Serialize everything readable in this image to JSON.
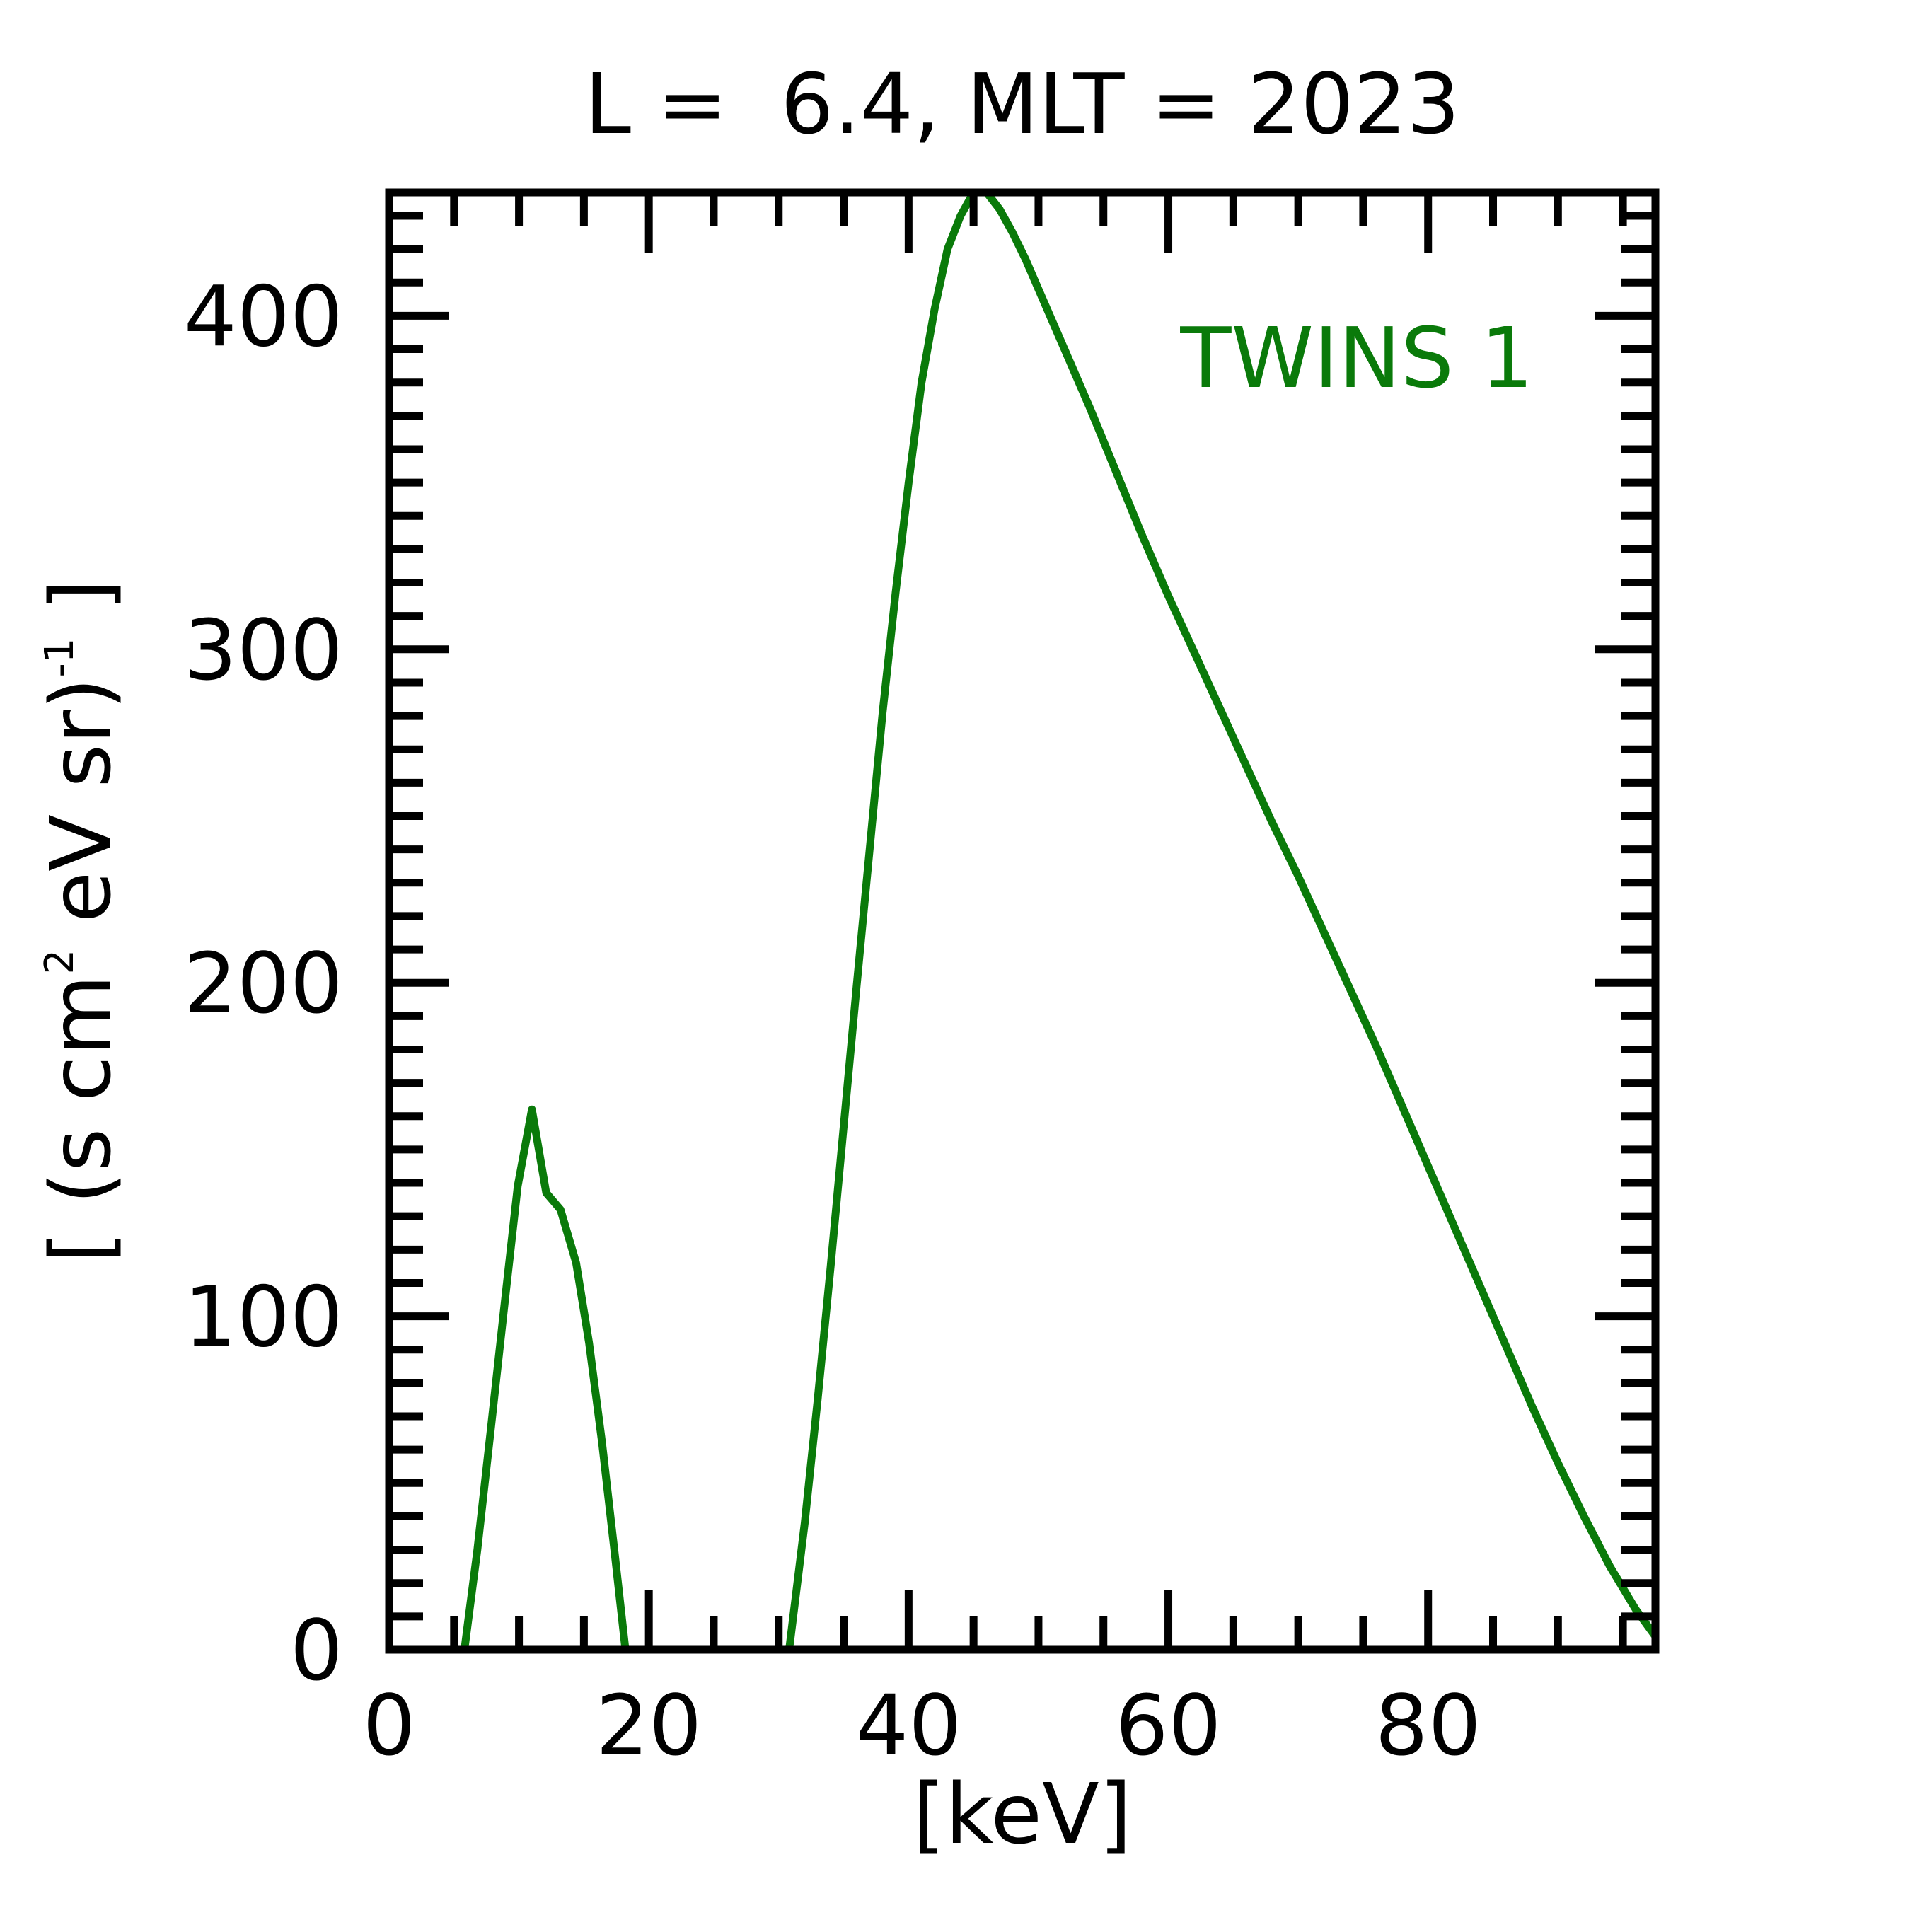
{
  "chart_data": {
    "type": "line",
    "title": "L =  6.4, MLT = 2023",
    "xlabel": "[keV]",
    "ylabel": {
      "prefix": "[ (s cm",
      "sup1": "2",
      "middle": " eV sr)",
      "sup2": "-1",
      "suffix": " ]"
    },
    "xlim": [
      0,
      97.5
    ],
    "ylim": [
      0,
      437
    ],
    "x_ticks": [
      0,
      20,
      40,
      60,
      80
    ],
    "x_tick_labels": [
      "0",
      "20",
      "40",
      "60",
      "80"
    ],
    "y_ticks": [
      0,
      100,
      200,
      300,
      400
    ],
    "y_tick_labels": [
      "0",
      "100",
      "200",
      "300",
      "400"
    ],
    "legend_position": "top-right",
    "colors": {
      "series": "#0a7a0a",
      "axes": "#000000"
    },
    "series": [
      {
        "name": "TWINS 1",
        "segments": [
          [
            [
              5.8,
              0
            ],
            [
              6.8,
              30
            ],
            [
              7.8,
              65
            ],
            [
              8.9,
              104
            ],
            [
              9.9,
              139
            ],
            [
              11.0,
              162
            ],
            [
              12.1,
              137
            ],
            [
              13.2,
              132
            ],
            [
              14.4,
              116
            ],
            [
              15.4,
              92
            ],
            [
              16.4,
              62
            ],
            [
              17.4,
              28
            ],
            [
              18.2,
              0
            ]
          ],
          [
            [
              30.8,
              0
            ],
            [
              32.0,
              38
            ],
            [
              33.0,
              75
            ],
            [
              34.0,
              115
            ],
            [
              35.0,
              157
            ],
            [
              36.0,
              199
            ],
            [
              37.0,
              240
            ],
            [
              38.0,
              281
            ],
            [
              39.0,
              317
            ],
            [
              40.0,
              350
            ],
            [
              41.0,
              380
            ],
            [
              42.0,
              402
            ],
            [
              43.0,
              420
            ],
            [
              44.0,
              430
            ],
            [
              45.0,
              437
            ],
            [
              46.0,
              437
            ],
            [
              47.0,
              432
            ],
            [
              48.0,
              425
            ],
            [
              49.0,
              417
            ],
            [
              50.0,
              408
            ],
            [
              52.0,
              390
            ],
            [
              54.0,
              372
            ],
            [
              56.0,
              353
            ],
            [
              58.0,
              334
            ],
            [
              60.0,
              316
            ],
            [
              62.0,
              299
            ],
            [
              64.0,
              282
            ],
            [
              66.0,
              265
            ],
            [
              68.0,
              248
            ],
            [
              70.0,
              232
            ],
            [
              72.0,
              215
            ],
            [
              74.0,
              198
            ],
            [
              76.0,
              181
            ],
            [
              78.0,
              163
            ],
            [
              80.0,
              145
            ],
            [
              82.0,
              127
            ],
            [
              84.0,
              109
            ],
            [
              86.0,
              91
            ],
            [
              88.0,
              73
            ],
            [
              90.0,
              56
            ],
            [
              92.0,
              40
            ],
            [
              94.0,
              25
            ],
            [
              96.0,
              12
            ],
            [
              97.5,
              4
            ]
          ]
        ]
      }
    ]
  }
}
